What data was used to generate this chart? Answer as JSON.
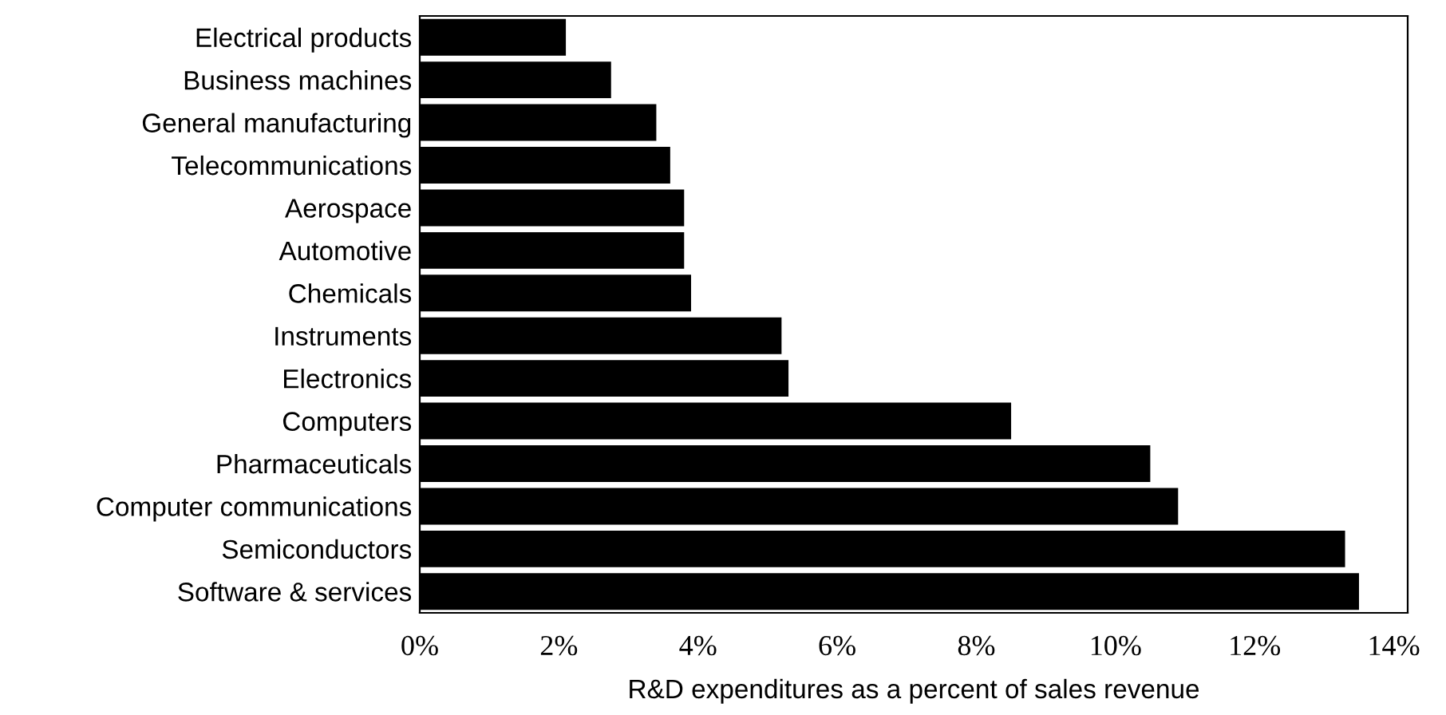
{
  "chart_data": {
    "type": "bar",
    "orientation": "horizontal",
    "xlabel": "R&D expenditures as a percent of sales revenue",
    "categories": [
      "Electrical products",
      "Business machines",
      "General manufacturing",
      "Telecommunications",
      "Aerospace",
      "Automotive",
      "Chemicals",
      "Instruments",
      "Electronics",
      "Computers",
      "Pharmaceuticals",
      "Computer communications",
      "Semiconductors",
      "Software & services"
    ],
    "values": [
      2.1,
      2.75,
      3.4,
      3.6,
      3.8,
      3.8,
      3.9,
      5.2,
      5.3,
      8.5,
      10.5,
      10.9,
      13.3,
      13.5
    ],
    "color": "#000000",
    "xlim": [
      0,
      14.2
    ],
    "xticks": [
      {
        "value": 0,
        "label": "0%"
      },
      {
        "value": 2,
        "label": "2%"
      },
      {
        "value": 4,
        "label": "4%"
      },
      {
        "value": 6,
        "label": "6%"
      },
      {
        "value": 8,
        "label": "8%"
      },
      {
        "value": 10,
        "label": "10%"
      },
      {
        "value": 12,
        "label": "12%"
      },
      {
        "value": 14,
        "label": "14%"
      }
    ],
    "grid": false
  }
}
